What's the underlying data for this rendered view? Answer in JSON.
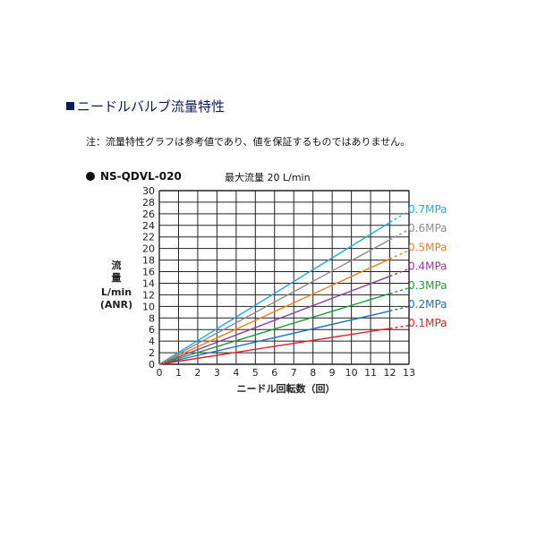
{
  "heading": "ニードルバルブ流量特性",
  "note": "注：流量特性グラフは参考値であり、値を保証するものではありません。",
  "model": "NS-QDVL-020",
  "max_flow": "最大流量 20 L/min",
  "chart_data": {
    "type": "line",
    "xlabel": "ニードル回転数（回）",
    "ylabel_lines": [
      "流",
      "量",
      "L/min",
      "(ANR)"
    ],
    "xlim": [
      0,
      13
    ],
    "ylim": [
      0,
      30
    ],
    "x_ticks": [
      0,
      1,
      2,
      3,
      4,
      5,
      6,
      7,
      8,
      9,
      10,
      11,
      12,
      13
    ],
    "y_ticks": [
      0,
      2,
      4,
      6,
      8,
      10,
      12,
      14,
      16,
      18,
      20,
      22,
      24,
      26,
      28,
      30
    ],
    "grid": true,
    "legend_position": "right",
    "series": [
      {
        "name": "0.7MPa",
        "color": "#27a9e1",
        "x": [
          0,
          12
        ],
        "y": [
          0,
          24.5
        ],
        "dashed_x": [
          12,
          13
        ],
        "dashed_y": [
          24.5,
          26.5
        ]
      },
      {
        "name": "0.6MPa",
        "color": "#8c8c8c",
        "x": [
          0,
          12
        ],
        "y": [
          0,
          21.5
        ],
        "dashed_x": [
          12,
          13
        ],
        "dashed_y": [
          21.5,
          23.3
        ]
      },
      {
        "name": "0.5MPa",
        "color": "#ef7d1a",
        "x": [
          0,
          12
        ],
        "y": [
          0,
          18.2
        ],
        "dashed_x": [
          12,
          13
        ],
        "dashed_y": [
          18.2,
          19.7
        ]
      },
      {
        "name": "0.4MPa",
        "color": "#8b3fa3",
        "x": [
          0,
          12
        ],
        "y": [
          0,
          15.2
        ],
        "dashed_x": [
          12,
          13
        ],
        "dashed_y": [
          15.2,
          16.5
        ]
      },
      {
        "name": "0.3MPa",
        "color": "#1e9a3c",
        "x": [
          0,
          12
        ],
        "y": [
          0,
          12.2
        ],
        "dashed_x": [
          12,
          13
        ],
        "dashed_y": [
          12.2,
          13.2
        ]
      },
      {
        "name": "0.2MPa",
        "color": "#1f6fc0",
        "x": [
          0,
          12
        ],
        "y": [
          0,
          9.2
        ],
        "dashed_x": [
          12,
          13
        ],
        "dashed_y": [
          9.2,
          10.0
        ]
      },
      {
        "name": "0.1MPa",
        "color": "#e0202a",
        "x": [
          0,
          12
        ],
        "y": [
          0,
          6.2
        ],
        "dashed_x": [
          12,
          13
        ],
        "dashed_y": [
          6.2,
          6.7
        ]
      }
    ]
  }
}
